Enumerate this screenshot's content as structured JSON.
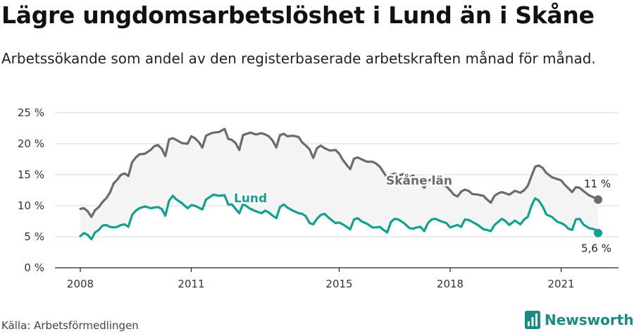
{
  "title": "Lägre ungdomsarbetslöshet i Lund än i Skåne",
  "subtitle": "Arbetssökande som andel av den registerbaserade arbetskraften månad för månad.",
  "source": "Källa: Arbetsförmedlingen",
  "brand": "Newsworthy",
  "colors": {
    "skane": "#6b6a70",
    "lund": "#12a090",
    "band": "#f4f4f4",
    "grid": "#d9d9d9",
    "brand": "#1a8a83"
  },
  "chart_data": {
    "type": "line",
    "title": "Lägre ungdomsarbetslöshet i Lund än i Skåne",
    "xlabel": "",
    "ylabel": "",
    "ylim": [
      0,
      25
    ],
    "xlim": [
      2008,
      2022.5
    ],
    "y_ticks": [
      0,
      5,
      10,
      15,
      20,
      25
    ],
    "y_tick_labels": [
      "0 %",
      "5 %",
      "10 %",
      "15 %",
      "20 %",
      "25 %"
    ],
    "x_ticks": [
      2008,
      2011,
      2015,
      2018,
      2021
    ],
    "x_tick_labels": [
      "2008",
      "2011",
      "2015",
      "2018",
      "2021"
    ],
    "grid": true,
    "series": [
      {
        "name": "Skåne län",
        "end_label": "11 %",
        "points": [
          [
            2008.0,
            9.5
          ],
          [
            2008.1,
            9.6
          ],
          [
            2008.2,
            9.1
          ],
          [
            2008.3,
            8.2
          ],
          [
            2008.4,
            9.3
          ],
          [
            2008.5,
            9.8
          ],
          [
            2008.6,
            10.6
          ],
          [
            2008.7,
            11.2
          ],
          [
            2008.8,
            12.1
          ],
          [
            2008.9,
            13.6
          ],
          [
            2009.0,
            14.2
          ],
          [
            2009.1,
            15.0
          ],
          [
            2009.2,
            15.2
          ],
          [
            2009.3,
            14.8
          ],
          [
            2009.4,
            17.0
          ],
          [
            2009.5,
            17.8
          ],
          [
            2009.6,
            18.3
          ],
          [
            2009.75,
            18.4
          ],
          [
            2009.9,
            19.0
          ],
          [
            2010.0,
            19.6
          ],
          [
            2010.1,
            19.8
          ],
          [
            2010.2,
            19.2
          ],
          [
            2010.3,
            18.0
          ],
          [
            2010.4,
            20.7
          ],
          [
            2010.5,
            20.9
          ],
          [
            2010.6,
            20.6
          ],
          [
            2010.75,
            20.1
          ],
          [
            2010.9,
            20.0
          ],
          [
            2011.0,
            21.2
          ],
          [
            2011.1,
            20.9
          ],
          [
            2011.2,
            20.3
          ],
          [
            2011.3,
            19.4
          ],
          [
            2011.4,
            21.3
          ],
          [
            2011.5,
            21.6
          ],
          [
            2011.6,
            21.8
          ],
          [
            2011.75,
            21.9
          ],
          [
            2011.9,
            22.4
          ],
          [
            2012.0,
            20.8
          ],
          [
            2012.1,
            20.6
          ],
          [
            2012.2,
            20.1
          ],
          [
            2012.3,
            19.0
          ],
          [
            2012.4,
            21.4
          ],
          [
            2012.5,
            21.6
          ],
          [
            2012.6,
            21.8
          ],
          [
            2012.75,
            21.5
          ],
          [
            2012.9,
            21.7
          ],
          [
            2013.0,
            21.5
          ],
          [
            2013.1,
            21.2
          ],
          [
            2013.2,
            20.5
          ],
          [
            2013.3,
            19.4
          ],
          [
            2013.4,
            21.4
          ],
          [
            2013.5,
            21.6
          ],
          [
            2013.6,
            21.2
          ],
          [
            2013.75,
            21.3
          ],
          [
            2013.9,
            21.1
          ],
          [
            2014.0,
            20.2
          ],
          [
            2014.1,
            19.7
          ],
          [
            2014.2,
            19.1
          ],
          [
            2014.3,
            17.7
          ],
          [
            2014.4,
            19.3
          ],
          [
            2014.5,
            19.7
          ],
          [
            2014.6,
            19.3
          ],
          [
            2014.75,
            18.9
          ],
          [
            2014.9,
            19.0
          ],
          [
            2015.0,
            18.4
          ],
          [
            2015.1,
            17.4
          ],
          [
            2015.2,
            16.6
          ],
          [
            2015.3,
            15.9
          ],
          [
            2015.4,
            17.6
          ],
          [
            2015.5,
            17.8
          ],
          [
            2015.6,
            17.5
          ],
          [
            2015.75,
            17.1
          ],
          [
            2015.9,
            17.1
          ],
          [
            2016.0,
            16.8
          ],
          [
            2016.1,
            16.3
          ],
          [
            2016.2,
            15.4
          ],
          [
            2016.3,
            14.5
          ],
          [
            2016.4,
            15.0
          ],
          [
            2016.5,
            15.2
          ],
          [
            2016.6,
            14.9
          ],
          [
            2016.75,
            15.1
          ],
          [
            2016.9,
            14.6
          ],
          [
            2017.0,
            14.9
          ],
          [
            2017.1,
            14.1
          ],
          [
            2017.2,
            13.7
          ],
          [
            2017.3,
            12.9
          ],
          [
            2017.4,
            14.0
          ],
          [
            2017.5,
            14.3
          ],
          [
            2017.6,
            14.0
          ],
          [
            2017.75,
            13.5
          ],
          [
            2017.9,
            13.1
          ],
          [
            2018.0,
            12.5
          ],
          [
            2018.1,
            11.8
          ],
          [
            2018.2,
            11.5
          ],
          [
            2018.3,
            12.3
          ],
          [
            2018.4,
            12.6
          ],
          [
            2018.5,
            12.4
          ],
          [
            2018.6,
            11.9
          ],
          [
            2018.75,
            11.8
          ],
          [
            2018.9,
            11.6
          ],
          [
            2019.0,
            11.0
          ],
          [
            2019.1,
            10.5
          ],
          [
            2019.2,
            11.6
          ],
          [
            2019.3,
            12.0
          ],
          [
            2019.4,
            12.2
          ],
          [
            2019.5,
            12.0
          ],
          [
            2019.6,
            11.8
          ],
          [
            2019.75,
            12.4
          ],
          [
            2019.9,
            12.1
          ],
          [
            2020.0,
            12.5
          ],
          [
            2020.1,
            13.2
          ],
          [
            2020.2,
            14.8
          ],
          [
            2020.3,
            16.3
          ],
          [
            2020.4,
            16.5
          ],
          [
            2020.5,
            16.1
          ],
          [
            2020.6,
            15.3
          ],
          [
            2020.75,
            14.6
          ],
          [
            2020.9,
            14.3
          ],
          [
            2021.0,
            14.1
          ],
          [
            2021.1,
            13.4
          ],
          [
            2021.2,
            12.8
          ],
          [
            2021.3,
            12.2
          ],
          [
            2021.4,
            13.0
          ],
          [
            2021.5,
            12.9
          ],
          [
            2021.6,
            12.4
          ],
          [
            2021.75,
            11.7
          ],
          [
            2021.9,
            11.3
          ],
          [
            2022.0,
            11.0
          ]
        ]
      },
      {
        "name": "Lund",
        "end_label": "5,6 %",
        "points": [
          [
            2008.0,
            5.1
          ],
          [
            2008.1,
            5.6
          ],
          [
            2008.2,
            5.3
          ],
          [
            2008.3,
            4.6
          ],
          [
            2008.4,
            5.7
          ],
          [
            2008.5,
            6.1
          ],
          [
            2008.6,
            6.8
          ],
          [
            2008.7,
            6.9
          ],
          [
            2008.8,
            6.6
          ],
          [
            2008.9,
            6.5
          ],
          [
            2009.0,
            6.6
          ],
          [
            2009.1,
            6.9
          ],
          [
            2009.2,
            7.0
          ],
          [
            2009.3,
            6.6
          ],
          [
            2009.4,
            8.5
          ],
          [
            2009.5,
            9.2
          ],
          [
            2009.6,
            9.6
          ],
          [
            2009.75,
            9.9
          ],
          [
            2009.9,
            9.6
          ],
          [
            2010.0,
            9.7
          ],
          [
            2010.1,
            9.8
          ],
          [
            2010.2,
            9.5
          ],
          [
            2010.3,
            8.4
          ],
          [
            2010.4,
            10.8
          ],
          [
            2010.5,
            11.6
          ],
          [
            2010.6,
            11.0
          ],
          [
            2010.75,
            10.4
          ],
          [
            2010.9,
            9.6
          ],
          [
            2011.0,
            10.1
          ],
          [
            2011.1,
            10.0
          ],
          [
            2011.2,
            9.7
          ],
          [
            2011.3,
            9.4
          ],
          [
            2011.4,
            11.0
          ],
          [
            2011.5,
            11.4
          ],
          [
            2011.6,
            11.8
          ],
          [
            2011.75,
            11.6
          ],
          [
            2011.9,
            11.7
          ],
          [
            2012.0,
            10.2
          ],
          [
            2012.1,
            10.2
          ],
          [
            2012.2,
            9.5
          ],
          [
            2012.3,
            8.8
          ],
          [
            2012.4,
            10.3
          ],
          [
            2012.5,
            9.9
          ],
          [
            2012.6,
            9.5
          ],
          [
            2012.75,
            9.1
          ],
          [
            2012.9,
            8.8
          ],
          [
            2013.0,
            9.2
          ],
          [
            2013.1,
            8.9
          ],
          [
            2013.2,
            8.4
          ],
          [
            2013.3,
            8.0
          ],
          [
            2013.4,
            9.8
          ],
          [
            2013.5,
            10.2
          ],
          [
            2013.6,
            9.7
          ],
          [
            2013.75,
            9.2
          ],
          [
            2013.9,
            8.8
          ],
          [
            2014.0,
            8.7
          ],
          [
            2014.1,
            8.3
          ],
          [
            2014.2,
            7.2
          ],
          [
            2014.3,
            7.0
          ],
          [
            2014.4,
            7.9
          ],
          [
            2014.5,
            8.5
          ],
          [
            2014.6,
            8.7
          ],
          [
            2014.75,
            7.9
          ],
          [
            2014.9,
            7.2
          ],
          [
            2015.0,
            7.3
          ],
          [
            2015.1,
            7.0
          ],
          [
            2015.2,
            6.6
          ],
          [
            2015.3,
            6.2
          ],
          [
            2015.4,
            7.8
          ],
          [
            2015.5,
            8.0
          ],
          [
            2015.6,
            7.5
          ],
          [
            2015.75,
            7.1
          ],
          [
            2015.9,
            6.5
          ],
          [
            2016.0,
            6.5
          ],
          [
            2016.1,
            6.6
          ],
          [
            2016.2,
            6.1
          ],
          [
            2016.3,
            5.7
          ],
          [
            2016.4,
            7.4
          ],
          [
            2016.5,
            7.9
          ],
          [
            2016.6,
            7.8
          ],
          [
            2016.75,
            7.2
          ],
          [
            2016.9,
            6.4
          ],
          [
            2017.0,
            6.3
          ],
          [
            2017.1,
            6.5
          ],
          [
            2017.2,
            6.6
          ],
          [
            2017.3,
            5.9
          ],
          [
            2017.4,
            7.2
          ],
          [
            2017.5,
            7.8
          ],
          [
            2017.6,
            7.9
          ],
          [
            2017.75,
            7.5
          ],
          [
            2017.9,
            7.2
          ],
          [
            2018.0,
            6.5
          ],
          [
            2018.1,
            6.7
          ],
          [
            2018.2,
            6.9
          ],
          [
            2018.3,
            6.6
          ],
          [
            2018.4,
            7.8
          ],
          [
            2018.5,
            7.7
          ],
          [
            2018.6,
            7.4
          ],
          [
            2018.75,
            6.9
          ],
          [
            2018.9,
            6.2
          ],
          [
            2019.0,
            6.1
          ],
          [
            2019.1,
            5.9
          ],
          [
            2019.2,
            6.9
          ],
          [
            2019.3,
            7.4
          ],
          [
            2019.4,
            7.9
          ],
          [
            2019.5,
            7.5
          ],
          [
            2019.6,
            6.9
          ],
          [
            2019.75,
            7.6
          ],
          [
            2019.9,
            7.0
          ],
          [
            2020.0,
            7.8
          ],
          [
            2020.1,
            8.2
          ],
          [
            2020.2,
            10.0
          ],
          [
            2020.3,
            11.2
          ],
          [
            2020.4,
            10.8
          ],
          [
            2020.5,
            9.9
          ],
          [
            2020.6,
            8.6
          ],
          [
            2020.75,
            8.2
          ],
          [
            2020.9,
            7.4
          ],
          [
            2021.0,
            7.2
          ],
          [
            2021.1,
            6.9
          ],
          [
            2021.2,
            6.3
          ],
          [
            2021.3,
            6.1
          ],
          [
            2021.4,
            7.8
          ],
          [
            2021.5,
            7.9
          ],
          [
            2021.6,
            7.0
          ],
          [
            2021.75,
            6.4
          ],
          [
            2021.9,
            6.2
          ],
          [
            2022.0,
            5.6
          ]
        ]
      }
    ]
  }
}
